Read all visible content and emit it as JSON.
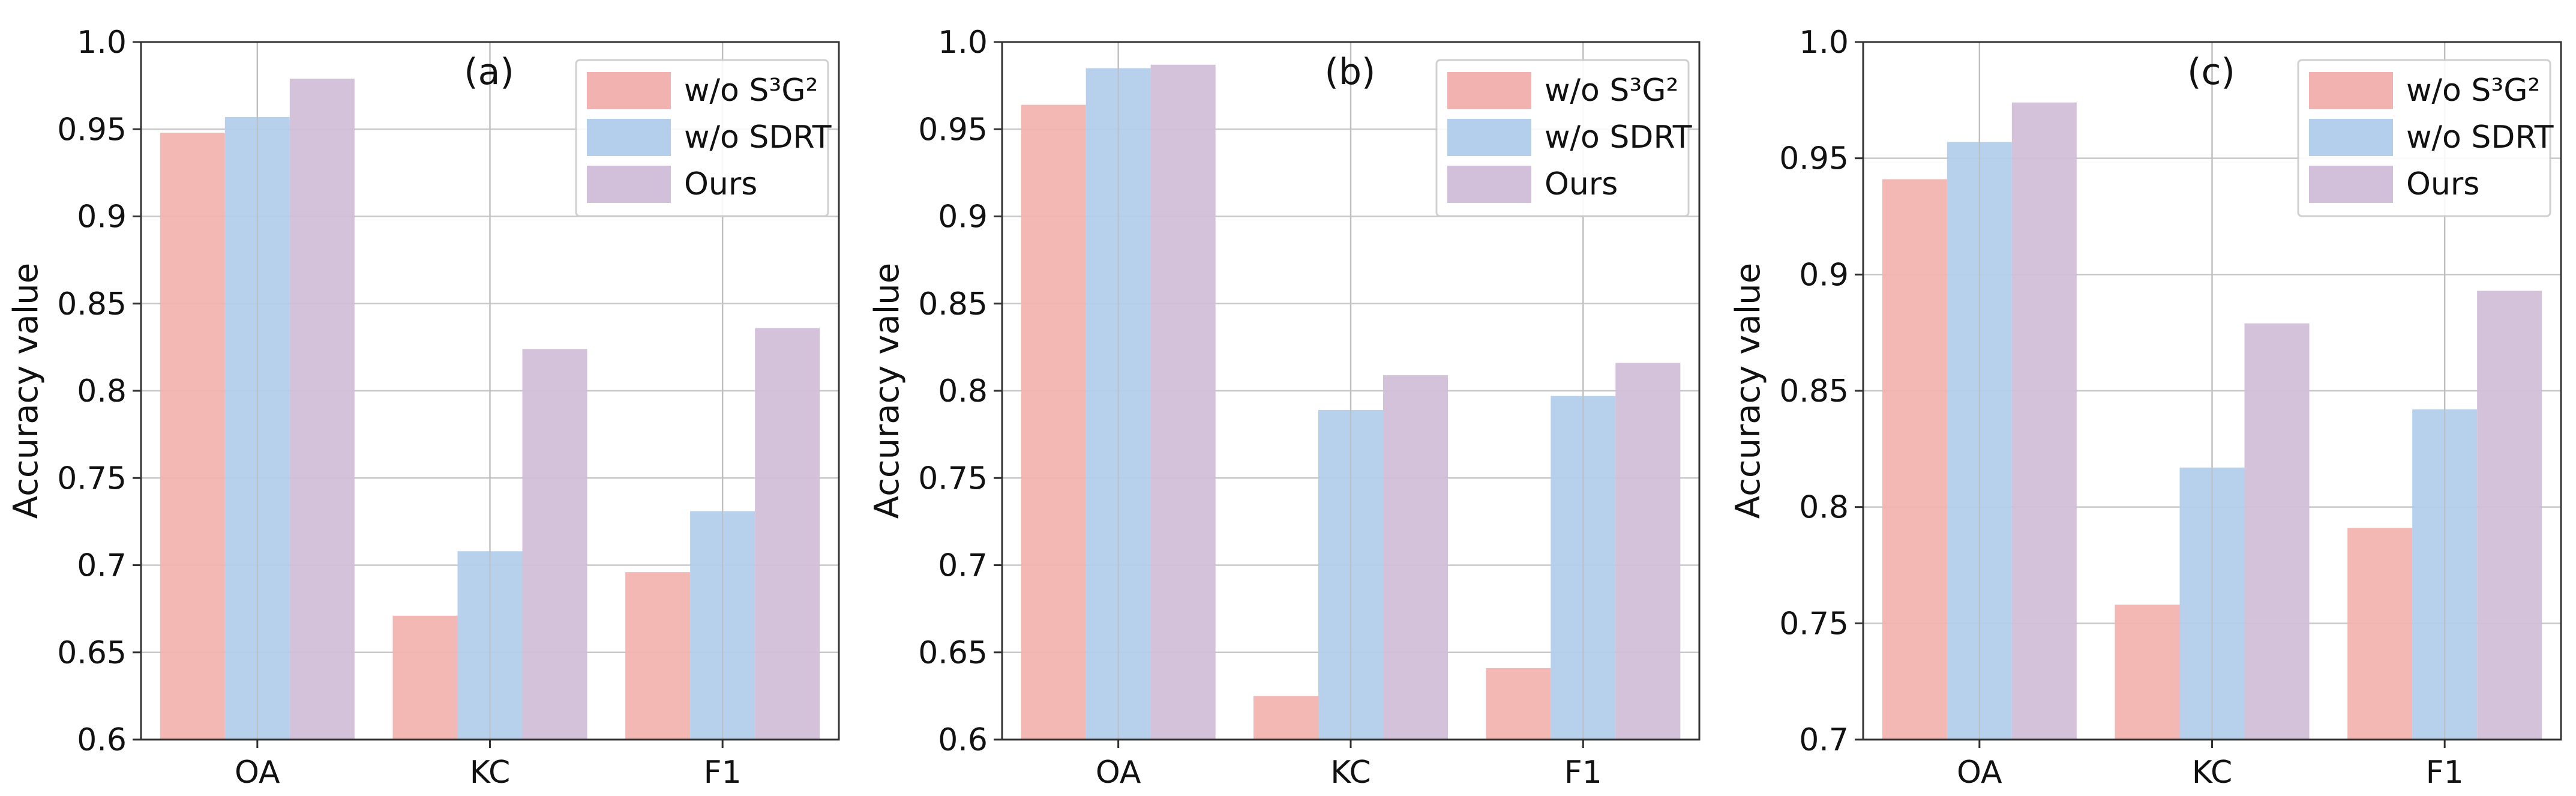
{
  "chart_data": [
    {
      "type": "bar",
      "panel_label": "(a)",
      "categories": [
        "OA",
        "KC",
        "F1"
      ],
      "series": [
        {
          "name": "w/o S³G²",
          "color": "#f2b3b0",
          "values": [
            0.948,
            0.671,
            0.696
          ]
        },
        {
          "name": "w/o SDRT",
          "color": "#b3cfeb",
          "values": [
            0.957,
            0.708,
            0.731
          ]
        },
        {
          "name": "Ours",
          "color": "#d2bfd9",
          "values": [
            0.979,
            0.824,
            0.836
          ]
        }
      ],
      "ylabel": "Accuracy value",
      "ylim": [
        0.6,
        1.0
      ],
      "yticks": [
        "0.6",
        "0.65",
        "0.7",
        "0.75",
        "0.8",
        "0.85",
        "0.9",
        "0.95",
        "1.0"
      ],
      "grid": true,
      "legend_position": "top-right"
    },
    {
      "type": "bar",
      "panel_label": "(b)",
      "categories": [
        "OA",
        "KC",
        "F1"
      ],
      "series": [
        {
          "name": "w/o S³G²",
          "color": "#f2b3b0",
          "values": [
            0.964,
            0.625,
            0.641
          ]
        },
        {
          "name": "w/o SDRT",
          "color": "#b3cfeb",
          "values": [
            0.985,
            0.789,
            0.797
          ]
        },
        {
          "name": "Ours",
          "color": "#d2bfd9",
          "values": [
            0.987,
            0.809,
            0.816
          ]
        }
      ],
      "ylabel": "Accuracy value",
      "ylim": [
        0.6,
        1.0
      ],
      "yticks": [
        "0.6",
        "0.65",
        "0.7",
        "0.75",
        "0.8",
        "0.85",
        "0.9",
        "0.95",
        "1.0"
      ],
      "grid": true,
      "legend_position": "top-right"
    },
    {
      "type": "bar",
      "panel_label": "(c)",
      "categories": [
        "OA",
        "KC",
        "F1"
      ],
      "series": [
        {
          "name": "w/o S³G²",
          "color": "#f2b3b0",
          "values": [
            0.941,
            0.758,
            0.791
          ]
        },
        {
          "name": "w/o SDRT",
          "color": "#b3cfeb",
          "values": [
            0.957,
            0.817,
            0.842
          ]
        },
        {
          "name": "Ours",
          "color": "#d2bfd9",
          "values": [
            0.974,
            0.879,
            0.893
          ]
        }
      ],
      "ylabel": "Accuracy value",
      "ylim": [
        0.7,
        1.0
      ],
      "yticks": [
        "0.7",
        "0.75",
        "0.8",
        "0.85",
        "0.9",
        "0.95",
        "1.0"
      ],
      "grid": true,
      "legend_position": "top-right"
    }
  ]
}
